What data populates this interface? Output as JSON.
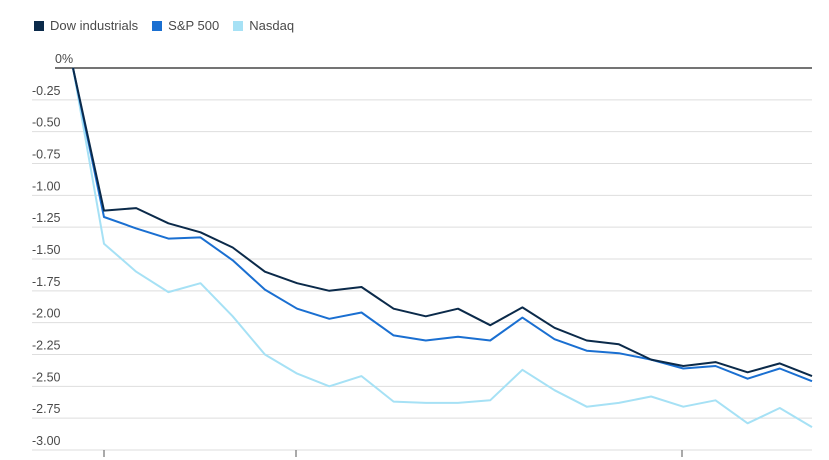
{
  "chart_data": {
    "type": "line",
    "ylim": [
      -3.0,
      0
    ],
    "yticks": [
      {
        "value": 0,
        "label": "0%"
      },
      {
        "value": -0.25,
        "label": "-0.25"
      },
      {
        "value": -0.5,
        "label": "-0.50"
      },
      {
        "value": -0.75,
        "label": "-0.75"
      },
      {
        "value": -1.0,
        "label": "-1.00"
      },
      {
        "value": -1.25,
        "label": "-1.25"
      },
      {
        "value": -1.5,
        "label": "-1.50"
      },
      {
        "value": -1.75,
        "label": "-1.75"
      },
      {
        "value": -2.0,
        "label": "-2.00"
      },
      {
        "value": -2.25,
        "label": "-2.25"
      },
      {
        "value": -2.5,
        "label": "-2.50"
      },
      {
        "value": -2.75,
        "label": "-2.75"
      },
      {
        "value": -3.0,
        "label": "-3.00"
      }
    ],
    "grid": true,
    "legend_position": "top-left",
    "series": [
      {
        "name": "Dow industrials",
        "color": "#0b2a4a",
        "values": [
          0,
          -1.12,
          -1.1,
          -1.22,
          -1.29,
          -1.41,
          -1.6,
          -1.69,
          -1.75,
          -1.72,
          -1.89,
          -1.95,
          -1.89,
          -2.02,
          -1.88,
          -2.04,
          -2.14,
          -2.17,
          -2.29,
          -2.34,
          -2.31,
          -2.39,
          -2.32,
          -2.42
        ]
      },
      {
        "name": "S&P 500",
        "color": "#1a6fd1",
        "values": [
          0,
          -1.17,
          -1.26,
          -1.34,
          -1.33,
          -1.51,
          -1.74,
          -1.89,
          -1.97,
          -1.92,
          -2.1,
          -2.14,
          -2.11,
          -2.14,
          -1.96,
          -2.13,
          -2.22,
          -2.24,
          -2.29,
          -2.36,
          -2.34,
          -2.44,
          -2.36,
          -2.46
        ]
      },
      {
        "name": "Nasdaq",
        "color": "#a6e1f5",
        "values": [
          0,
          -1.38,
          -1.6,
          -1.76,
          -1.69,
          -1.95,
          -2.25,
          -2.4,
          -2.5,
          -2.42,
          -2.62,
          -2.63,
          -2.63,
          -2.61,
          -2.37,
          -2.53,
          -2.66,
          -2.63,
          -2.58,
          -2.66,
          -2.61,
          -2.79,
          -2.67,
          -2.82
        ]
      }
    ]
  }
}
